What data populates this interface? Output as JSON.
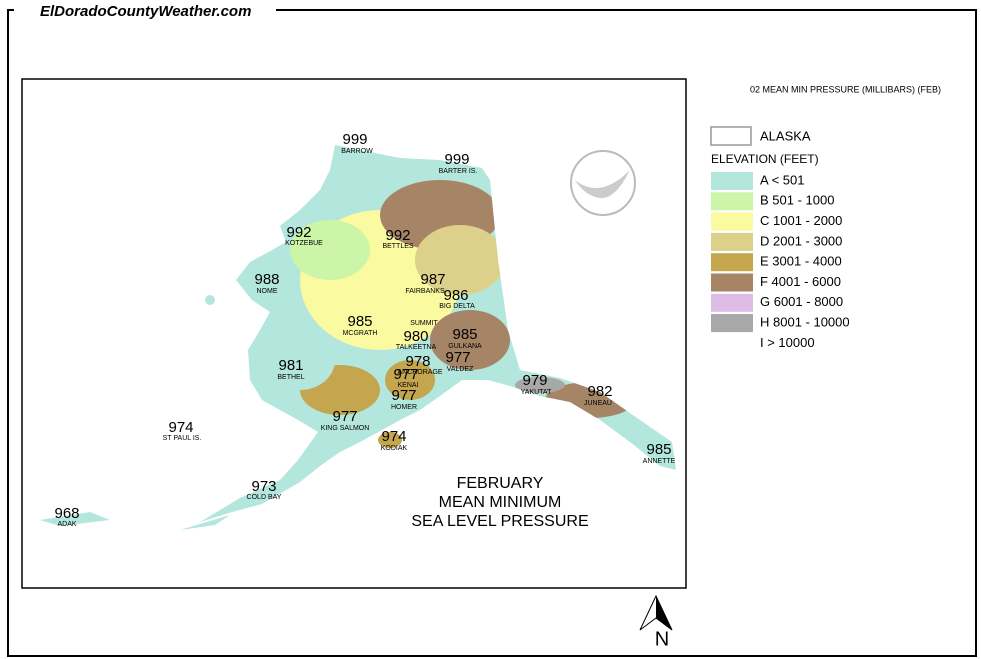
{
  "site": "ElDoradoCountyWeather.com",
  "map_caption": "02 MEAN MIN PRESSURE (MILLIBARS) (FEB)",
  "legend": {
    "region": "ALASKA",
    "title": "ELEVATION (FEET)",
    "classes": [
      {
        "label": "A < 501",
        "color": "#b3e6dc"
      },
      {
        "label": "B 501 - 1000",
        "color": "#ccf5a8"
      },
      {
        "label": "C 1001 - 2000",
        "color": "#fafaa0"
      },
      {
        "label": "D 2001 - 3000",
        "color": "#ddd08a"
      },
      {
        "label": "E 3001 - 4000",
        "color": "#c4a64e"
      },
      {
        "label": "F 4001 - 6000",
        "color": "#a68466"
      },
      {
        "label": "G 6001 - 8000",
        "color": "#ddbde6"
      },
      {
        "label": "H 8001 - 10000",
        "color": "#a8a8a8"
      },
      {
        "label": "I > 10000"
      }
    ]
  },
  "stations": [
    {
      "value": 999,
      "name": "BARROW"
    },
    {
      "value": 999,
      "name": "BARTER IS."
    },
    {
      "value": 992,
      "name": "KOTZEBUE"
    },
    {
      "value": 992,
      "name": "BETTLES"
    },
    {
      "value": 988,
      "name": "NOME"
    },
    {
      "value": 987,
      "name": "FAIRBANKS"
    },
    {
      "value": 986,
      "name": "BIG DELTA"
    },
    {
      "value": 985,
      "name": "MCGRATH"
    },
    {
      "name": "SUMMIT"
    },
    {
      "value": 980,
      "name": "TALKEETNA"
    },
    {
      "value": 985,
      "name": "GULKANA"
    },
    {
      "value": 978,
      "name": "ANCHORAGE"
    },
    {
      "value": 977,
      "name": "KENAI"
    },
    {
      "value": 977,
      "name": "VALDEZ"
    },
    {
      "value": 977,
      "name": "HOMER"
    },
    {
      "value": 979,
      "name": "YAKUTAT"
    },
    {
      "value": 982,
      "name": "JUNEAU"
    },
    {
      "value": 981,
      "name": "BETHEL"
    },
    {
      "value": 974,
      "name": "ST PAUL IS."
    },
    {
      "value": 977,
      "name": "KING SALMON"
    },
    {
      "value": 974,
      "name": "KODIAK"
    },
    {
      "value": 973,
      "name": "COLD BAY"
    },
    {
      "value": 968,
      "name": "ADAK"
    },
    {
      "value": 985,
      "name": "ANNETTE"
    }
  ],
  "title": [
    "FEBRUARY",
    "MEAN MINIMUM",
    "SEA LEVEL PRESSURE"
  ],
  "north": "N"
}
